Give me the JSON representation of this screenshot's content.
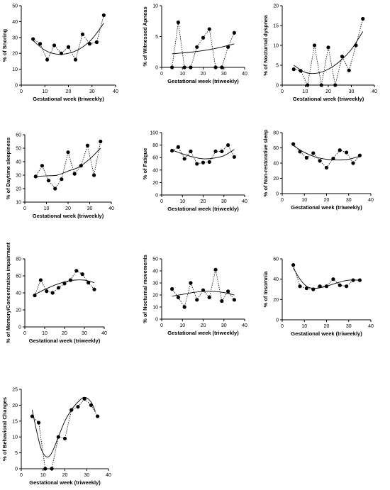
{
  "chart_data": [
    {
      "type": "scatter",
      "xlabel": "Gestational week (triweekly)",
      "ylabel": "% of Snoring",
      "xlim": [
        0,
        40
      ],
      "ylim": [
        0,
        50
      ],
      "xticks": [
        0,
        10,
        20,
        30,
        40
      ],
      "yticks": [
        0,
        10,
        20,
        30,
        40,
        50
      ],
      "x": [
        5,
        8,
        11,
        14,
        17,
        20,
        23,
        26,
        29,
        32,
        35
      ],
      "series": [
        {
          "values": [
            29,
            26,
            16,
            25,
            20,
            24,
            16,
            32,
            26,
            27,
            44
          ]
        }
      ],
      "fit_curve": [
        {
          "x": 5,
          "y": 28
        },
        {
          "x": 10,
          "y": 22
        },
        {
          "x": 15,
          "y": 19.5
        },
        {
          "x": 20,
          "y": 20
        },
        {
          "x": 25,
          "y": 23
        },
        {
          "x": 30,
          "y": 29
        },
        {
          "x": 35,
          "y": 39
        }
      ]
    },
    {
      "type": "scatter",
      "xlabel": "Gestational week (triweekly)",
      "ylabel": "% of Witnessed Apneas",
      "xlim": [
        0,
        40
      ],
      "ylim": [
        0,
        10
      ],
      "xticks": [
        0,
        10,
        20,
        30,
        40
      ],
      "yticks": [
        0,
        5,
        10
      ],
      "x": [
        5,
        8,
        11,
        14,
        17,
        20,
        23,
        26,
        29,
        32,
        35
      ],
      "series": [
        {
          "values": [
            0,
            7.3,
            0,
            0,
            3.3,
            4.8,
            6.2,
            0,
            0,
            3.3,
            5.6
          ]
        }
      ],
      "fit_curve": [
        {
          "x": 5,
          "y": 2.2
        },
        {
          "x": 15,
          "y": 2.5
        },
        {
          "x": 25,
          "y": 3
        },
        {
          "x": 35,
          "y": 3.8
        }
      ],
      "zero_line": true
    },
    {
      "type": "scatter",
      "xlabel": "Gestational week (triweekly)",
      "ylabel": "% of Nocturnal dyspnea",
      "xlim": [
        0,
        40
      ],
      "ylim": [
        0,
        20
      ],
      "xticks": [
        0,
        10,
        20,
        30,
        40
      ],
      "yticks": [
        0,
        5,
        10,
        15,
        20
      ],
      "x": [
        5,
        8,
        11,
        14,
        17,
        20,
        23,
        26,
        29,
        32,
        35
      ],
      "series": [
        {
          "values": [
            4,
            3.6,
            0,
            10,
            0,
            9.5,
            0,
            7.2,
            3.7,
            10,
            16.7
          ]
        }
      ],
      "fit_curve": [
        {
          "x": 5,
          "y": 5
        },
        {
          "x": 10,
          "y": 3.2
        },
        {
          "x": 15,
          "y": 3
        },
        {
          "x": 20,
          "y": 4
        },
        {
          "x": 25,
          "y": 6
        },
        {
          "x": 30,
          "y": 9
        },
        {
          "x": 35,
          "y": 13.5
        }
      ]
    },
    {
      "type": "scatter",
      "xlabel": "Gestational week (triweekly)",
      "ylabel": "% of Daytime sleepiness",
      "xlim": [
        0,
        40
      ],
      "ylim": [
        10,
        60
      ],
      "xticks": [
        0,
        10,
        20,
        30,
        40
      ],
      "yticks": [
        10,
        20,
        30,
        40,
        50,
        60
      ],
      "x": [
        5,
        8,
        11,
        14,
        17,
        20,
        23,
        26,
        29,
        32,
        35
      ],
      "series": [
        {
          "values": [
            29,
            37,
            26,
            20,
            27,
            47,
            31,
            37,
            52,
            30,
            55
          ]
        }
      ],
      "fit_curve": [
        {
          "x": 5,
          "y": 29
        },
        {
          "x": 10,
          "y": 29.5
        },
        {
          "x": 15,
          "y": 30
        },
        {
          "x": 20,
          "y": 33
        },
        {
          "x": 25,
          "y": 36
        },
        {
          "x": 30,
          "y": 42
        },
        {
          "x": 35,
          "y": 50
        }
      ]
    },
    {
      "type": "scatter",
      "xlabel": "Gestational week (triweekly)",
      "ylabel": "% of Fatigue",
      "xlim": [
        0,
        40
      ],
      "ylim": [
        0,
        100
      ],
      "xticks": [
        0,
        10,
        20,
        30,
        40
      ],
      "yticks": [
        0,
        20,
        40,
        60,
        80,
        100
      ],
      "x": [
        5,
        8,
        11,
        14,
        17,
        20,
        23,
        26,
        29,
        32,
        35
      ],
      "series": [
        {
          "values": [
            71,
            77,
            58,
            70,
            50,
            52,
            53,
            70,
            70,
            80,
            61
          ]
        }
      ],
      "fit_curve": [
        {
          "x": 5,
          "y": 72
        },
        {
          "x": 10,
          "y": 66
        },
        {
          "x": 15,
          "y": 61
        },
        {
          "x": 20,
          "y": 58
        },
        {
          "x": 25,
          "y": 59
        },
        {
          "x": 30,
          "y": 63
        },
        {
          "x": 35,
          "y": 73
        }
      ]
    },
    {
      "type": "scatter",
      "xlabel": "Gestational week (triweekly)",
      "ylabel": "% of Non-restorative sleep",
      "xlim": [
        0,
        40
      ],
      "ylim": [
        0,
        80
      ],
      "xticks": [
        0,
        10,
        20,
        30,
        40
      ],
      "yticks": [
        0,
        20,
        40,
        60,
        80
      ],
      "x": [
        5,
        8,
        11,
        14,
        17,
        20,
        23,
        26,
        29,
        32,
        35
      ],
      "series": [
        {
          "values": [
            65,
            55,
            47,
            53,
            43,
            34,
            46,
            57,
            54,
            40,
            50
          ]
        }
      ],
      "fit_curve": [
        {
          "x": 5,
          "y": 63
        },
        {
          "x": 10,
          "y": 54
        },
        {
          "x": 15,
          "y": 48
        },
        {
          "x": 20,
          "y": 45
        },
        {
          "x": 25,
          "y": 44
        },
        {
          "x": 30,
          "y": 45
        },
        {
          "x": 35,
          "y": 49
        }
      ]
    },
    {
      "type": "scatter",
      "xlabel": "Gestational week (triweekly)",
      "ylabel": "% of Memory/Concentration impairment",
      "xlim": [
        0,
        40
      ],
      "ylim": [
        0,
        80
      ],
      "xticks": [
        0,
        10,
        20,
        30,
        40
      ],
      "yticks": [
        0,
        20,
        40,
        60,
        80
      ],
      "x": [
        5,
        8,
        11,
        14,
        17,
        20,
        23,
        26,
        29,
        32,
        35
      ],
      "series": [
        {
          "values": [
            37,
            55,
            42,
            40,
            46,
            51,
            55,
            66,
            62,
            52,
            44
          ]
        }
      ],
      "fit_curve": [
        {
          "x": 5,
          "y": 38
        },
        {
          "x": 10,
          "y": 44
        },
        {
          "x": 15,
          "y": 49
        },
        {
          "x": 20,
          "y": 53
        },
        {
          "x": 25,
          "y": 55
        },
        {
          "x": 30,
          "y": 55
        },
        {
          "x": 35,
          "y": 52
        }
      ]
    },
    {
      "type": "scatter",
      "xlabel": "Gestational week (triweekly)",
      "ylabel": "% of Nocturnal movements",
      "xlim": [
        0,
        40
      ],
      "ylim": [
        0,
        50
      ],
      "xticks": [
        0,
        10,
        20,
        30,
        40
      ],
      "yticks": [
        0,
        10,
        20,
        30,
        40,
        50
      ],
      "x": [
        5,
        8,
        11,
        14,
        17,
        20,
        23,
        26,
        29,
        32,
        35
      ],
      "series": [
        {
          "values": [
            25,
            18,
            10,
            30,
            16,
            24,
            18,
            41,
            15,
            23,
            16
          ]
        }
      ],
      "fit_curve": [
        {
          "x": 5,
          "y": 19
        },
        {
          "x": 10,
          "y": 20.5
        },
        {
          "x": 15,
          "y": 22
        },
        {
          "x": 20,
          "y": 23
        },
        {
          "x": 25,
          "y": 23
        },
        {
          "x": 30,
          "y": 22
        },
        {
          "x": 35,
          "y": 20
        }
      ]
    },
    {
      "type": "scatter",
      "xlabel": "Gestational week (triweekly)",
      "ylabel": "% of Insomnia",
      "xlim": [
        0,
        40
      ],
      "ylim": [
        0,
        60
      ],
      "xticks": [
        0,
        10,
        20,
        30,
        40
      ],
      "yticks": [
        0,
        20,
        40,
        60
      ],
      "x": [
        5,
        8,
        11,
        14,
        17,
        20,
        23,
        26,
        29,
        32,
        35
      ],
      "series": [
        {
          "values": [
            54,
            33,
            31,
            30,
            33,
            33,
            40,
            34,
            33,
            39,
            39
          ]
        }
      ],
      "fit_curve": [
        {
          "x": 5,
          "y": 51
        },
        {
          "x": 8,
          "y": 40
        },
        {
          "x": 11,
          "y": 33
        },
        {
          "x": 14,
          "y": 31
        },
        {
          "x": 17,
          "y": 31.5
        },
        {
          "x": 20,
          "y": 33
        },
        {
          "x": 25,
          "y": 36.5
        },
        {
          "x": 30,
          "y": 39
        },
        {
          "x": 35,
          "y": 39
        }
      ]
    },
    {
      "type": "scatter",
      "xlabel": "Gestational week (triweekly)",
      "ylabel": "% of Behavioral Changes",
      "xlim": [
        0,
        40
      ],
      "ylim": [
        0,
        25
      ],
      "xticks": [
        0,
        10,
        20,
        30,
        40
      ],
      "yticks": [
        0,
        5,
        10,
        15,
        20,
        25
      ],
      "x": [
        5,
        8,
        11,
        14,
        17,
        20,
        23,
        26,
        29,
        32,
        35
      ],
      "series": [
        {
          "values": [
            16.5,
            14.5,
            0,
            0,
            10,
            9.5,
            18.5,
            19.5,
            22,
            20,
            16.5
          ]
        }
      ],
      "fit_curve": [
        {
          "x": 5,
          "y": 18.5
        },
        {
          "x": 7,
          "y": 12
        },
        {
          "x": 9,
          "y": 6.5
        },
        {
          "x": 11,
          "y": 4
        },
        {
          "x": 13,
          "y": 4
        },
        {
          "x": 15,
          "y": 6.5
        },
        {
          "x": 17,
          "y": 10
        },
        {
          "x": 20,
          "y": 15
        },
        {
          "x": 23,
          "y": 18.5
        },
        {
          "x": 26,
          "y": 21
        },
        {
          "x": 29,
          "y": 22.5
        },
        {
          "x": 32,
          "y": 21
        },
        {
          "x": 34,
          "y": 18
        }
      ]
    }
  ]
}
